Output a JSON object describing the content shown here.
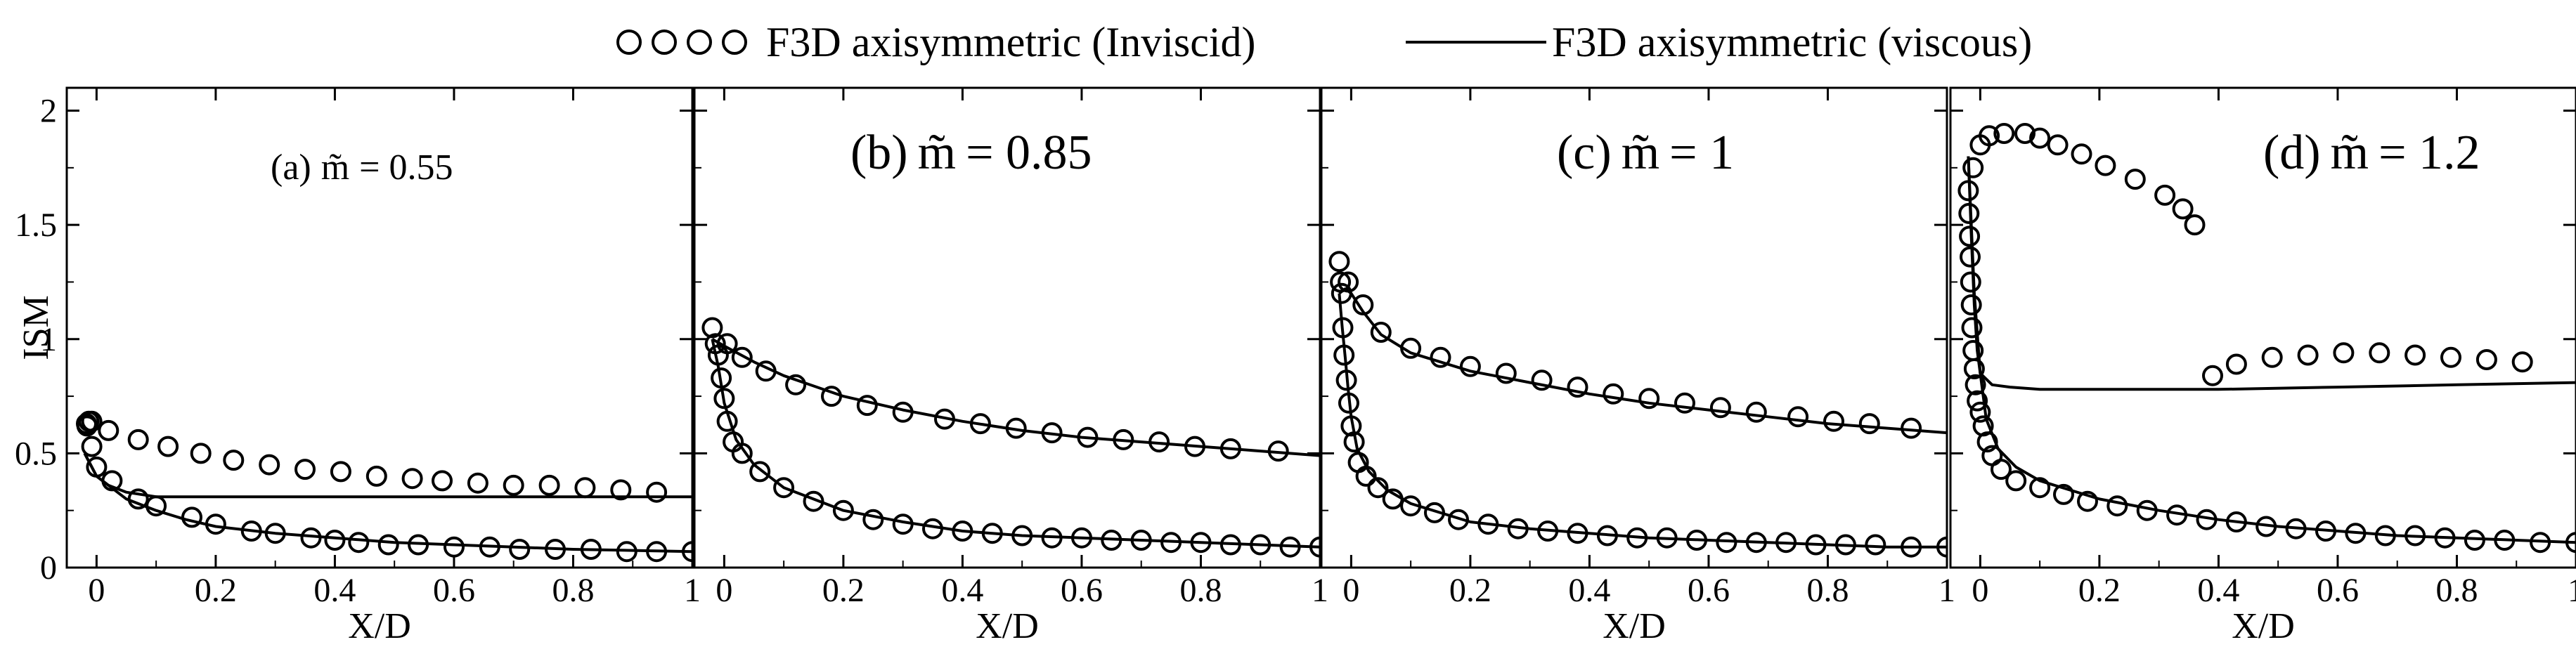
{
  "legend": {
    "inviscid_label": "F3D axisymmetric (Inviscid)",
    "viscous_label": "F3D axisymmetric (viscous)"
  },
  "colors": {
    "line": "#000000",
    "marker": "#000000",
    "background": "#ffffff"
  },
  "chart_data": [
    {
      "type": "line",
      "title": "(a) m̃ = 0.55",
      "label_prefix": "(a)",
      "label_symbol": "m̃",
      "label_value": "= 0.55",
      "xlabel": "X/D",
      "ylabel": "ISM",
      "xlim": [
        -0.05,
        1.0
      ],
      "ylim": [
        0,
        2.1
      ],
      "x_ticks": [
        0,
        0.2,
        0.4,
        0.6,
        0.8,
        1
      ],
      "x_tick_labels": [
        "0",
        "0.2",
        "0.4",
        "0.6",
        "0.8",
        "1"
      ],
      "y_ticks": [
        0,
        0.5,
        1,
        1.5,
        2
      ],
      "y_tick_labels": [
        "0",
        "0.5",
        "1",
        "1.5",
        "2"
      ],
      "series": [
        {
          "name": "F3D axisymmetric (Inviscid)",
          "style": "markers",
          "x": [
            -0.017,
            -0.013,
            -0.016,
            -0.008,
            0.0,
            0.026,
            0.07,
            0.1,
            0.16,
            0.2,
            0.26,
            0.3,
            0.36,
            0.4,
            0.44,
            0.49,
            0.54,
            0.6,
            0.66,
            0.71,
            0.77,
            0.83,
            0.89,
            0.94,
            1.0,
            -0.008,
            0.02,
            0.07,
            0.12,
            0.175,
            0.23,
            0.29,
            0.35,
            0.41,
            0.47,
            0.53,
            0.58,
            0.64,
            0.7,
            0.76,
            0.82,
            0.88,
            0.94
          ],
          "y": [
            0.63,
            0.64,
            0.62,
            0.53,
            0.44,
            0.38,
            0.3,
            0.27,
            0.22,
            0.19,
            0.16,
            0.15,
            0.13,
            0.12,
            0.11,
            0.1,
            0.1,
            0.09,
            0.09,
            0.08,
            0.08,
            0.08,
            0.07,
            0.07,
            0.07,
            0.64,
            0.6,
            0.56,
            0.53,
            0.5,
            0.47,
            0.45,
            0.43,
            0.42,
            0.4,
            0.39,
            0.38,
            0.37,
            0.36,
            0.36,
            0.35,
            0.34,
            0.33
          ]
        },
        {
          "name": "F3D axisymmetric (viscous) upper",
          "style": "line",
          "x": [
            -0.02,
            -0.01,
            0.0,
            0.02,
            0.05,
            0.1,
            0.2,
            0.4,
            0.6,
            0.8,
            1.0
          ],
          "y": [
            0.5,
            0.45,
            0.4,
            0.36,
            0.33,
            0.31,
            0.31,
            0.31,
            0.31,
            0.31,
            0.31
          ]
        },
        {
          "name": "F3D axisymmetric (viscous) lower",
          "style": "line",
          "x": [
            -0.02,
            0.0,
            0.05,
            0.1,
            0.15,
            0.2,
            0.3,
            0.4,
            0.5,
            0.6,
            0.7,
            0.8,
            0.9,
            1.0
          ],
          "y": [
            0.5,
            0.4,
            0.3,
            0.25,
            0.21,
            0.18,
            0.15,
            0.13,
            0.11,
            0.1,
            0.09,
            0.08,
            0.075,
            0.07
          ]
        }
      ]
    },
    {
      "type": "line",
      "title": "(b) m̃ = 0.85",
      "label_prefix": "(b)",
      "label_symbol": "m̃",
      "label_value": "= 0.85",
      "xlabel": "X/D",
      "ylabel": "",
      "xlim": [
        -0.05,
        1.0
      ],
      "ylim": [
        0,
        2.1
      ],
      "x_ticks": [
        0,
        0.2,
        0.4,
        0.6,
        0.8,
        1
      ],
      "x_tick_labels": [
        "0",
        "0.2",
        "0.4",
        "0.6",
        "0.8",
        "1"
      ],
      "y_ticks": [
        0,
        0.5,
        1,
        1.5,
        2
      ],
      "y_tick_labels": [],
      "series": [
        {
          "name": "F3D axisymmetric (Inviscid)",
          "style": "markers",
          "x": [
            -0.02,
            -0.015,
            -0.01,
            -0.005,
            0.0,
            0.005,
            0.015,
            0.03,
            0.06,
            0.1,
            0.15,
            0.2,
            0.25,
            0.3,
            0.35,
            0.4,
            0.45,
            0.5,
            0.55,
            0.6,
            0.65,
            0.7,
            0.75,
            0.8,
            0.85,
            0.9,
            0.95,
            1.0,
            0.005,
            0.03,
            0.07,
            0.12,
            0.18,
            0.24,
            0.3,
            0.37,
            0.43,
            0.49,
            0.55,
            0.61,
            0.67,
            0.73,
            0.79,
            0.85,
            0.93
          ],
          "y": [
            1.05,
            0.98,
            0.93,
            0.83,
            0.74,
            0.64,
            0.55,
            0.5,
            0.42,
            0.35,
            0.29,
            0.25,
            0.21,
            0.19,
            0.17,
            0.16,
            0.15,
            0.14,
            0.13,
            0.13,
            0.12,
            0.12,
            0.11,
            0.11,
            0.1,
            0.1,
            0.09,
            0.09,
            0.98,
            0.92,
            0.86,
            0.8,
            0.75,
            0.71,
            0.68,
            0.65,
            0.63,
            0.61,
            0.59,
            0.57,
            0.56,
            0.55,
            0.53,
            0.52,
            0.51
          ]
        },
        {
          "name": "F3D axisymmetric (viscous) upper",
          "style": "line",
          "x": [
            -0.02,
            0.0,
            0.05,
            0.1,
            0.2,
            0.3,
            0.4,
            0.5,
            0.6,
            0.7,
            0.8,
            0.9,
            1.0
          ],
          "y": [
            1.0,
            0.97,
            0.9,
            0.84,
            0.75,
            0.69,
            0.64,
            0.6,
            0.57,
            0.55,
            0.53,
            0.51,
            0.49
          ]
        },
        {
          "name": "F3D axisymmetric (viscous) lower",
          "style": "line",
          "x": [
            -0.02,
            -0.01,
            0.0,
            0.02,
            0.05,
            0.1,
            0.2,
            0.3,
            0.4,
            0.5,
            0.6,
            0.7,
            0.8,
            0.9,
            1.0
          ],
          "y": [
            1.0,
            0.88,
            0.72,
            0.56,
            0.45,
            0.35,
            0.25,
            0.2,
            0.16,
            0.14,
            0.13,
            0.12,
            0.11,
            0.1,
            0.09
          ]
        }
      ]
    },
    {
      "type": "line",
      "title": "(c) m̃ = 1",
      "label_prefix": "(c)",
      "label_symbol": "m̃",
      "label_value": "= 1",
      "xlabel": "X/D",
      "ylabel": "",
      "xlim": [
        -0.05,
        1.0
      ],
      "ylim": [
        0,
        2.1
      ],
      "x_ticks": [
        0,
        0.2,
        0.4,
        0.6,
        0.8,
        1
      ],
      "x_tick_labels": [
        "0",
        "0.2",
        "0.4",
        "0.6",
        "0.8",
        "1"
      ],
      "y_ticks": [
        0,
        0.5,
        1,
        1.5,
        2
      ],
      "y_tick_labels": [],
      "series": [
        {
          "name": "F3D axisymmetric (Inviscid)",
          "style": "markers",
          "x": [
            -0.02,
            -0.018,
            -0.016,
            -0.014,
            -0.012,
            -0.008,
            -0.004,
            0.0,
            0.005,
            0.012,
            0.025,
            0.045,
            0.07,
            0.1,
            0.14,
            0.18,
            0.23,
            0.28,
            0.33,
            0.38,
            0.43,
            0.48,
            0.53,
            0.58,
            0.63,
            0.68,
            0.73,
            0.78,
            0.83,
            0.88,
            0.94,
            1.0,
            -0.005,
            0.02,
            0.05,
            0.1,
            0.15,
            0.2,
            0.26,
            0.32,
            0.38,
            0.44,
            0.5,
            0.56,
            0.62,
            0.68,
            0.75,
            0.81,
            0.87,
            0.94
          ],
          "y": [
            1.34,
            1.25,
            1.2,
            1.05,
            0.93,
            0.82,
            0.72,
            0.62,
            0.55,
            0.46,
            0.4,
            0.35,
            0.3,
            0.27,
            0.24,
            0.21,
            0.19,
            0.17,
            0.16,
            0.15,
            0.14,
            0.13,
            0.13,
            0.12,
            0.11,
            0.11,
            0.11,
            0.1,
            0.1,
            0.1,
            0.09,
            0.09,
            1.25,
            1.15,
            1.03,
            0.96,
            0.92,
            0.88,
            0.85,
            0.82,
            0.79,
            0.76,
            0.74,
            0.72,
            0.7,
            0.68,
            0.66,
            0.64,
            0.63,
            0.61
          ]
        },
        {
          "name": "F3D axisymmetric (viscous) upper",
          "style": "line",
          "x": [
            -0.02,
            -0.01,
            0.0,
            0.02,
            0.05,
            0.1,
            0.2,
            0.3,
            0.4,
            0.5,
            0.6,
            0.7,
            0.8,
            0.9,
            1.0
          ],
          "y": [
            1.2,
            1.22,
            1.2,
            1.12,
            1.02,
            0.94,
            0.86,
            0.81,
            0.76,
            0.72,
            0.69,
            0.66,
            0.63,
            0.61,
            0.59
          ]
        },
        {
          "name": "F3D axisymmetric (viscous) lower",
          "style": "line",
          "x": [
            -0.02,
            -0.015,
            -0.01,
            -0.005,
            0.0,
            0.01,
            0.03,
            0.06,
            0.1,
            0.2,
            0.3,
            0.4,
            0.5,
            0.6,
            0.7,
            0.8,
            0.9,
            1.0
          ],
          "y": [
            1.2,
            1.05,
            0.92,
            0.78,
            0.66,
            0.52,
            0.42,
            0.34,
            0.28,
            0.2,
            0.17,
            0.15,
            0.13,
            0.12,
            0.11,
            0.1,
            0.09,
            0.09
          ]
        }
      ]
    },
    {
      "type": "line",
      "title": "(d) m̃ = 1.2",
      "label_prefix": "(d)",
      "label_symbol": "m̃",
      "label_value": "= 1.2",
      "xlabel": "X/D",
      "ylabel": "",
      "xlim": [
        -0.05,
        1.0
      ],
      "ylim": [
        0,
        2.1
      ],
      "x_ticks": [
        0,
        0.2,
        0.4,
        0.6,
        0.8,
        1
      ],
      "x_tick_labels": [
        "0",
        "0.2",
        "0.4",
        "0.6",
        "0.8",
        "1"
      ],
      "y_ticks": [
        0,
        0.5,
        1,
        1.5,
        2
      ],
      "y_tick_labels": [],
      "series": [
        {
          "name": "F3D axisymmetric (Inviscid)",
          "style": "markers",
          "x": [
            -0.02,
            -0.019,
            -0.018,
            -0.017,
            -0.016,
            -0.015,
            -0.014,
            -0.012,
            -0.01,
            -0.008,
            -0.005,
            0.0,
            0.005,
            0.012,
            0.02,
            0.035,
            0.06,
            0.1,
            0.14,
            0.18,
            0.23,
            0.28,
            0.33,
            0.38,
            0.43,
            0.48,
            0.53,
            0.58,
            0.63,
            0.68,
            0.73,
            0.78,
            0.83,
            0.88,
            0.94,
            1.0,
            -0.012,
            0.0,
            0.015,
            0.04,
            0.075,
            0.1,
            0.13,
            0.17,
            0.21,
            0.26,
            0.31,
            0.34,
            0.36,
            0.39,
            0.43,
            0.49,
            0.55,
            0.61,
            0.67,
            0.73,
            0.79,
            0.85,
            0.91
          ],
          "y": [
            1.65,
            1.55,
            1.45,
            1.36,
            1.25,
            1.15,
            1.05,
            0.95,
            0.87,
            0.8,
            0.73,
            0.68,
            0.62,
            0.55,
            0.49,
            0.43,
            0.38,
            0.35,
            0.32,
            0.29,
            0.27,
            0.25,
            0.23,
            0.21,
            0.2,
            0.18,
            0.17,
            0.16,
            0.15,
            0.14,
            0.14,
            0.13,
            0.12,
            0.12,
            0.11,
            0.11,
            1.75,
            1.85,
            1.89,
            1.9,
            1.9,
            1.88,
            1.85,
            1.81,
            1.76,
            1.7,
            1.63,
            1.57,
            1.5,
            0.84,
            0.89,
            0.92,
            0.93,
            0.94,
            0.94,
            0.93,
            0.92,
            0.91,
            0.9
          ]
        },
        {
          "name": "F3D axisymmetric (viscous) upper",
          "style": "line",
          "x": [
            -0.02,
            -0.015,
            -0.01,
            -0.005,
            0.0,
            0.02,
            0.05,
            0.1,
            0.2,
            0.4,
            0.6,
            0.8,
            1.0
          ],
          "y": [
            1.8,
            1.45,
            1.15,
            0.95,
            0.85,
            0.8,
            0.79,
            0.78,
            0.78,
            0.78,
            0.79,
            0.8,
            0.81
          ]
        },
        {
          "name": "F3D axisymmetric (viscous) lower",
          "style": "line",
          "x": [
            -0.02,
            -0.01,
            0.0,
            0.01,
            0.03,
            0.06,
            0.1,
            0.2,
            0.3,
            0.4,
            0.5,
            0.6,
            0.7,
            0.8,
            0.9,
            1.0
          ],
          "y": [
            1.8,
            1.2,
            0.85,
            0.65,
            0.52,
            0.44,
            0.38,
            0.3,
            0.25,
            0.21,
            0.18,
            0.16,
            0.14,
            0.13,
            0.12,
            0.11
          ]
        }
      ]
    }
  ]
}
